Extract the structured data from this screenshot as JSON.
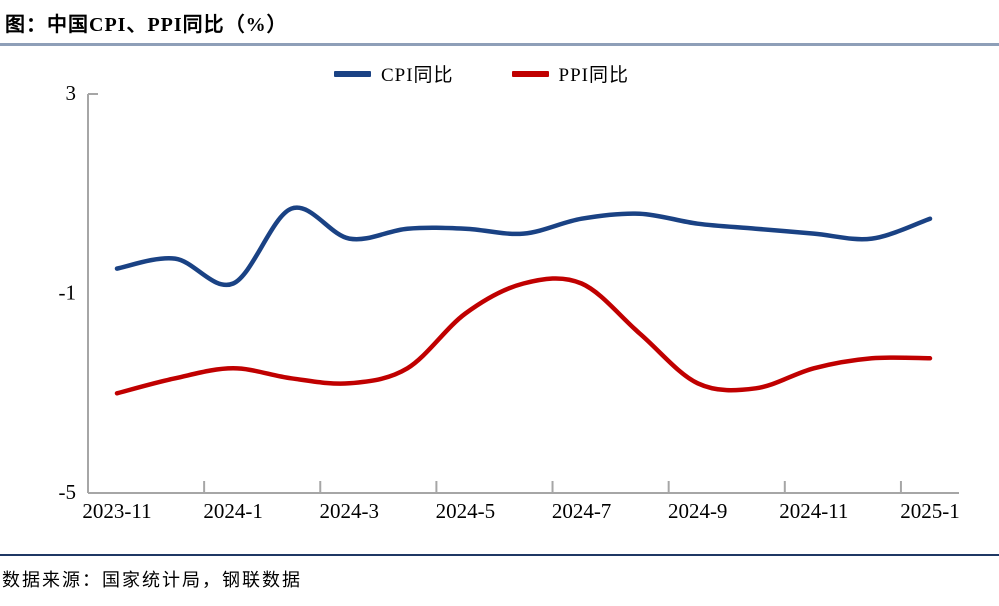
{
  "title": "图：中国CPI、PPI同比（%）",
  "source": "数据来源：国家统计局，钢联数据",
  "colors": {
    "cpi_blue": "#1a4284",
    "ppi_red": "#c00000",
    "axis_gray": "#a6a6a6",
    "title_rule": "#8e9fb8",
    "footer_rule": "#1f3864",
    "text": "#000000",
    "background": "#ffffff"
  },
  "chart_data": {
    "type": "line",
    "title": "图：中国CPI、PPI同比（%）",
    "xlabel": "",
    "ylabel": "",
    "smoothed": true,
    "grid": false,
    "legend_position": "top",
    "ylim": [
      -5,
      3
    ],
    "y_tick_values": [
      3,
      -1,
      -5
    ],
    "y_tick_labels": [
      "3",
      "-1",
      "-5"
    ],
    "x": [
      "2023-11",
      "2023-12",
      "2024-1",
      "2024-2",
      "2024-3",
      "2024-4",
      "2024-5",
      "2024-6",
      "2024-7",
      "2024-8",
      "2024-9",
      "2024-10",
      "2024-11",
      "2024-12",
      "2025-1"
    ],
    "x_tick_label_indices": [
      0,
      2,
      4,
      6,
      8,
      10,
      12,
      14
    ],
    "x_tick_labels": [
      "2023-11",
      "2024-1",
      "2024-3",
      "2024-5",
      "2024-7",
      "2024-9",
      "2024-11",
      "2025-1"
    ],
    "series": [
      {
        "name": "CPI同比",
        "color": "#1a4284",
        "values": [
          -0.5,
          -0.3,
          -0.8,
          0.7,
          0.1,
          0.3,
          0.3,
          0.2,
          0.5,
          0.6,
          0.4,
          0.3,
          0.2,
          0.1,
          0.5
        ]
      },
      {
        "name": "PPI同比",
        "color": "#c00000",
        "values": [
          -3.0,
          -2.7,
          -2.5,
          -2.7,
          -2.8,
          -2.5,
          -1.4,
          -0.8,
          -0.8,
          -1.8,
          -2.8,
          -2.9,
          -2.5,
          -2.3,
          -2.3
        ]
      }
    ]
  }
}
